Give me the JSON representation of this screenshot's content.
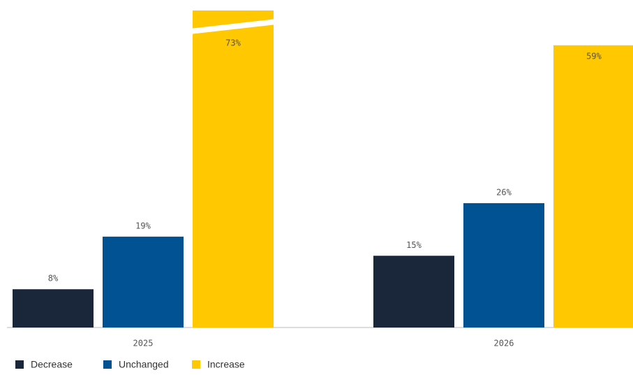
{
  "chart_data": {
    "type": "bar",
    "categories": [
      "2025",
      "2026"
    ],
    "series": [
      {
        "name": "Decrease",
        "color": "#1a2639",
        "values": [
          8,
          15
        ],
        "value_labels": [
          "8%",
          "15%"
        ]
      },
      {
        "name": "Unchanged",
        "color": "#005293",
        "values": [
          19,
          26
        ],
        "value_labels": [
          "19%",
          "26%"
        ]
      },
      {
        "name": "Increase",
        "color": "#ffc800",
        "values": [
          73,
          59
        ],
        "value_labels": [
          "73%",
          "59%"
        ]
      }
    ],
    "legend": "bottom-left",
    "grid": false
  }
}
